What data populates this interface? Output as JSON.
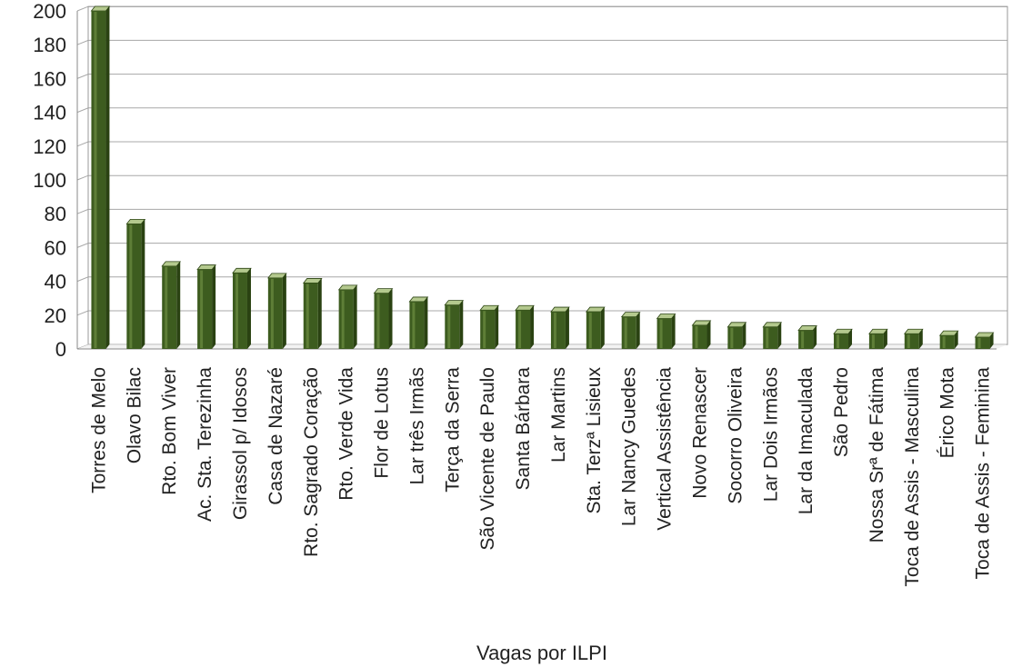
{
  "chart_data": {
    "type": "bar",
    "title": "",
    "xlabel": "Vagas por ILPI",
    "ylabel": "",
    "ylim": [
      0,
      200
    ],
    "yticks": [
      0,
      20,
      40,
      60,
      80,
      100,
      120,
      140,
      160,
      180,
      200
    ],
    "grid": true,
    "legend": "none",
    "bar_color": "#3d5c1f",
    "bar_highlight": "#7a9a4a",
    "categories": [
      "Torres de Melo",
      "Olavo Bilac",
      "Rto. Bom Viver",
      "Ac. Sta. Terezinha",
      "Girassol p/ Idosos",
      "Casa de Nazaré",
      "Rto. Sagrado Coração",
      "Rto. Verde Vida",
      "Flor de Lotus",
      "Lar três Irmãs",
      "Terça da Serra",
      "São Vicente de Paulo",
      "Santa Bárbara",
      "Lar Martins",
      "Sta. Terzª Lisieux",
      "Lar Nancy Guedes",
      "Vertical Assistência",
      "Novo Renascer",
      "Socorro Oliveira",
      "Lar Dois Irmãos",
      "Lar da Imaculada",
      "São Pedro",
      "Nossa Srª de Fátima",
      "Toca de Assis - Masculina",
      "Érico Mota",
      "Toca de Assis - Feminina"
    ],
    "values": [
      200,
      74,
      49,
      47,
      45,
      42,
      39,
      35,
      33,
      28,
      26,
      23,
      23,
      22,
      22,
      19,
      18,
      14,
      13,
      13,
      11,
      9,
      9,
      9,
      8,
      7
    ]
  }
}
